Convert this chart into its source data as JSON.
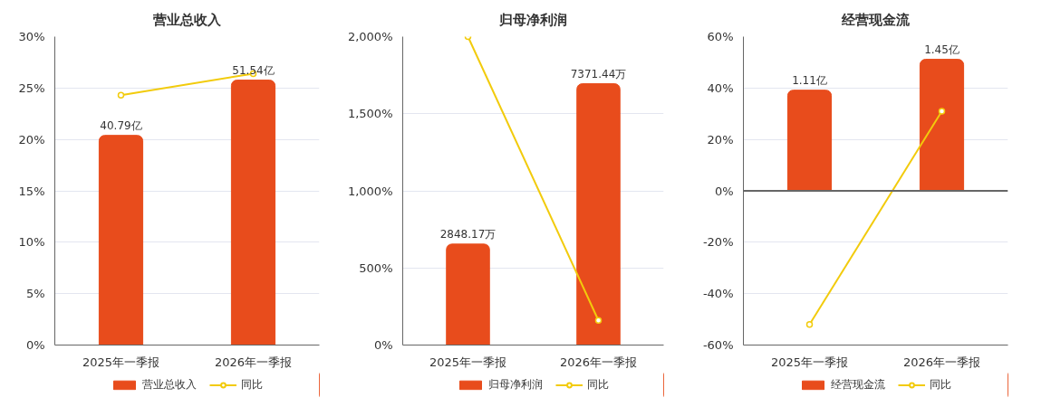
{
  "chart_data": [
    {
      "type": "bar",
      "title": "营业总收入",
      "categories": [
        "2025年一季报",
        "2026年一季报"
      ],
      "ylim": [
        0,
        30
      ],
      "yticks": [
        {
          "value": 0,
          "label": "0%"
        },
        {
          "value": 5,
          "label": "5%"
        },
        {
          "value": 10,
          "label": "10%"
        },
        {
          "value": 15,
          "label": "15%"
        },
        {
          "value": 20,
          "label": "20%"
        },
        {
          "value": 25,
          "label": "25%"
        },
        {
          "value": 30,
          "label": "30%"
        }
      ],
      "y2lim": [
        0,
        60
      ],
      "grid": "y",
      "legend": "bottom",
      "series": [
        {
          "name": "营业总收入",
          "type": "bar",
          "axis": "y2",
          "color": "#e84c1c",
          "values": [
            40.79,
            51.54
          ],
          "value_labels": [
            "40.79亿",
            "51.54亿"
          ]
        },
        {
          "name": "同比",
          "type": "line",
          "color": "#f2cb0c",
          "marker": "circle",
          "values": [
            24.3,
            26.4
          ]
        }
      ]
    },
    {
      "type": "bar",
      "title": "归母净利润",
      "categories": [
        "2025年一季报",
        "2026年一季报"
      ],
      "ylim": [
        0,
        2000
      ],
      "yticks": [
        {
          "value": 0,
          "label": "0%"
        },
        {
          "value": 500,
          "label": "500%"
        },
        {
          "value": 1000,
          "label": "1,000%"
        },
        {
          "value": 1500,
          "label": "1,500%"
        },
        {
          "value": 2000,
          "label": "2,000%"
        }
      ],
      "y2lim": [
        0,
        8700
      ],
      "grid": "y",
      "legend": "bottom",
      "series": [
        {
          "name": "归母净利润",
          "type": "bar",
          "axis": "y2",
          "color": "#e84c1c",
          "values": [
            2848.17,
            7371.44
          ],
          "value_labels": [
            "2848.17万",
            "7371.44万"
          ]
        },
        {
          "name": "同比",
          "type": "line",
          "color": "#f2cb0c",
          "marker": "circle",
          "values": [
            2000,
            160
          ]
        }
      ]
    },
    {
      "type": "bar",
      "title": "经营现金流",
      "categories": [
        "2025年一季报",
        "2026年一季报"
      ],
      "ylim": [
        -60,
        60
      ],
      "yticks": [
        {
          "value": -60,
          "label": "-60%"
        },
        {
          "value": -40,
          "label": "-40%"
        },
        {
          "value": -20,
          "label": "-20%"
        },
        {
          "value": 0,
          "label": "0%"
        },
        {
          "value": 20,
          "label": "20%"
        },
        {
          "value": 40,
          "label": "40%"
        },
        {
          "value": 60,
          "label": "60%"
        }
      ],
      "y2lim": [
        -1.7,
        1.7
      ],
      "grid": "y",
      "legend": "bottom",
      "series": [
        {
          "name": "经营现金流",
          "type": "bar",
          "axis": "y2",
          "color": "#e84c1c",
          "values": [
            1.11,
            1.45
          ],
          "value_labels": [
            "1.11亿",
            "1.45亿"
          ]
        },
        {
          "name": "同比",
          "type": "line",
          "color": "#f2cb0c",
          "marker": "circle",
          "values": [
            -52,
            31
          ]
        }
      ]
    }
  ]
}
